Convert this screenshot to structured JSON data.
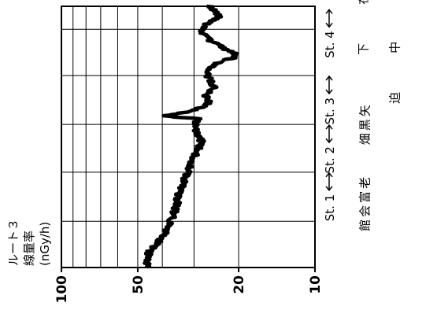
{
  "chart_data": {
    "type": "line",
    "title": "",
    "ylabel": {
      "route": "ルート３",
      "quantity": "線量率",
      "unit": "(nGy/h)"
    },
    "yscale": "log",
    "ylim": [
      10,
      100
    ],
    "yticks": [
      {
        "value": 100,
        "label": "100"
      },
      {
        "value": 50,
        "label": "50"
      },
      {
        "value": 20,
        "label": "20"
      },
      {
        "value": 10,
        "label": "10"
      }
    ],
    "ygrid": [
      10,
      20,
      30,
      40,
      50,
      60,
      70,
      80,
      90,
      100
    ],
    "xgrid": [
      0,
      0.177,
      0.365,
      0.548,
      0.735,
      0.912,
      1
    ],
    "stations": [
      {
        "label": "St. 1",
        "x": 0.365
      },
      {
        "label": "St. 2",
        "x": 0.548
      },
      {
        "label": "St. 3",
        "x": 0.735
      },
      {
        "label": "St. 4",
        "x": 0.99
      }
    ],
    "locations": [
      {
        "label": "老富会館",
        "x": 0.243
      },
      {
        "label": "矢黒畑",
        "x": 0.546
      },
      {
        "label": "下迫",
        "x": 0.743
      },
      {
        "label": "在中",
        "x": 0.936
      }
    ],
    "series": [
      {
        "x": [
          0,
          0.03,
          0.06,
          0.09,
          0.12,
          0.15,
          0.18,
          0.21,
          0.24,
          0.27,
          0.3,
          0.33,
          0.36,
          0.39,
          0.42,
          0.45,
          0.48,
          0.51,
          0.54,
          0.57,
          0.58,
          0.6,
          0.63,
          0.66,
          0.69,
          0.72,
          0.75,
          0.78,
          0.81,
          0.84,
          0.87,
          0.9,
          0.93,
          0.96,
          1.0
        ],
        "values": [
          46,
          46,
          45,
          42,
          40,
          38,
          37,
          36,
          35,
          35,
          34,
          33,
          32,
          31,
          30,
          29,
          28,
          29,
          30,
          29,
          40,
          30,
          26,
          27,
          25,
          26,
          27,
          25,
          20,
          23,
          26,
          28,
          27,
          24,
          26
        ]
      }
    ]
  }
}
